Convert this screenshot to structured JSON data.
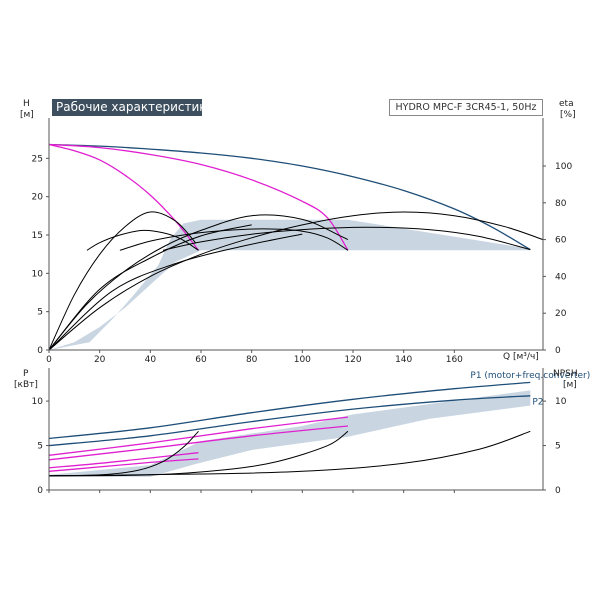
{
  "title": "Рабочие характеристики",
  "model": "HYDRO MPC-F 3CR45-1, 50Hz",
  "colors": {
    "area": "#c9d6e2",
    "max_curve": "#1e4e78",
    "speed_curve": "#000000",
    "eta_curve": "#000000",
    "one_pump": "#e020d0",
    "power_curve": "#1e4e78",
    "npsh_curve": "#000000",
    "label": "#1e4e78"
  },
  "top_axes": {
    "y_left": {
      "symbol": "H",
      "unit": "[м]",
      "ticks": [
        "0",
        "5",
        "10",
        "15",
        "20",
        "25"
      ]
    },
    "y_right": {
      "symbol": "eta",
      "unit": "[%]",
      "ticks": [
        "0",
        "20",
        "40",
        "60",
        "80",
        "100"
      ]
    },
    "x": {
      "symbol": "Q",
      "unit": "[м³/ч]",
      "ticks": [
        "0",
        "20",
        "40",
        "60",
        "80",
        "100",
        "120",
        "140",
        "160"
      ]
    }
  },
  "bottom_axes": {
    "y_left": {
      "symbol": "P",
      "unit": "[кВт]",
      "ticks": [
        "0",
        "5",
        "10"
      ]
    },
    "y_right": {
      "symbol": "NPSH",
      "unit": "[м]",
      "ticks": [
        "0",
        "5",
        "10"
      ]
    }
  },
  "chart_data": [
    {
      "type": "line",
      "xlim": [
        0,
        195
      ],
      "ylim": [
        0,
        30
      ],
      "y2lim": [
        0,
        125
      ],
      "xlabel": "Q [м³/ч]",
      "ylabel": "H [м]",
      "y2label": "eta [%]",
      "grid": false,
      "area_bounds": [
        [
          0,
          0
        ],
        [
          16,
          1
        ],
        [
          25,
          4
        ],
        [
          33,
          7
        ],
        [
          43,
          11
        ],
        [
          48,
          14.5
        ],
        [
          53,
          16.5
        ],
        [
          60,
          17
        ],
        [
          118,
          17
        ],
        [
          190,
          13.2
        ],
        [
          190,
          13
        ],
        [
          60,
          13
        ],
        [
          50,
          11.5
        ],
        [
          40,
          8.5
        ],
        [
          30,
          5.5
        ],
        [
          20,
          3
        ],
        [
          10,
          1
        ],
        [
          0,
          0
        ]
      ],
      "series": [
        {
          "role": "max-speed-3-pumps",
          "color": "max_curve",
          "points": [
            [
              0,
              26.8
            ],
            [
              20,
              26.6
            ],
            [
              40,
              26.2
            ],
            [
              60,
              25.7
            ],
            [
              80,
              25
            ],
            [
              100,
              24
            ],
            [
              120,
              22.6
            ],
            [
              140,
              20.8
            ],
            [
              160,
              18.4
            ],
            [
              175,
              16
            ],
            [
              190,
              13.1
            ]
          ]
        },
        {
          "role": "max-speed-2-pumps",
          "color": "one_pump",
          "points": [
            [
              0,
              26.8
            ],
            [
              20,
              26.4
            ],
            [
              40,
              25.5
            ],
            [
              60,
              24.2
            ],
            [
              80,
              22.2
            ],
            [
              100,
              19.4
            ],
            [
              110,
              17.2
            ],
            [
              118,
              13
            ]
          ]
        },
        {
          "role": "max-speed-1-pump",
          "color": "one_pump",
          "points": [
            [
              0,
              26.8
            ],
            [
              10,
              26
            ],
            [
              20,
              24.8
            ],
            [
              30,
              22.8
            ],
            [
              40,
              20.2
            ],
            [
              50,
              16.8
            ],
            [
              59,
              13
            ]
          ]
        },
        {
          "role": "reduced-speed-3-pumps",
          "color": "speed_curve",
          "points": [
            [
              45,
              13
            ],
            [
              60,
              14.1
            ],
            [
              80,
              15.1
            ],
            [
              100,
              15.7
            ],
            [
              125,
              16
            ],
            [
              150,
              15.7
            ],
            [
              170,
              14.8
            ],
            [
              190,
              13.1
            ]
          ]
        },
        {
          "role": "reduced-speed-2-pumps",
          "color": "speed_curve",
          "points": [
            [
              28,
              13
            ],
            [
              40,
              14.2
            ],
            [
              55,
              15.1
            ],
            [
              70,
              15.6
            ],
            [
              85,
              15.8
            ],
            [
              100,
              15.5
            ],
            [
              110,
              14.6
            ],
            [
              118,
              13
            ]
          ]
        },
        {
          "role": "reduced-speed-1-pump",
          "color": "speed_curve",
          "points": [
            [
              15,
              13
            ],
            [
              20,
              14
            ],
            [
              28,
              15
            ],
            [
              37,
              15.6
            ],
            [
              45,
              15.3
            ],
            [
              52,
              14.5
            ],
            [
              59,
              13
            ]
          ]
        },
        {
          "role": "eta-3-pumps",
          "axis": "y2",
          "color": "eta_curve",
          "points": [
            [
              0,
              0
            ],
            [
              20,
              23
            ],
            [
              40,
              40
            ],
            [
              60,
              52
            ],
            [
              80,
              61
            ],
            [
              100,
              68
            ],
            [
              120,
              73
            ],
            [
              140,
              75
            ],
            [
              160,
              73
            ],
            [
              180,
              67
            ],
            [
              195,
              60
            ]
          ]
        },
        {
          "role": "eta-2-pumps",
          "axis": "y2",
          "color": "eta_curve",
          "points": [
            [
              0,
              0
            ],
            [
              15,
              25
            ],
            [
              30,
              43
            ],
            [
              45,
              56
            ],
            [
              60,
              65
            ],
            [
              80,
              73
            ],
            [
              100,
              71
            ],
            [
              115,
              62
            ],
            [
              118,
              60
            ]
          ]
        },
        {
          "role": "eta-1-pump",
          "axis": "y2",
          "color": "eta_curve",
          "points": [
            [
              0,
              0
            ],
            [
              10,
              30
            ],
            [
              20,
              52
            ],
            [
              30,
              67
            ],
            [
              40,
              75
            ],
            [
              50,
              70
            ],
            [
              58,
              58
            ]
          ]
        },
        {
          "role": "eta-aux-a",
          "axis": "y2",
          "color": "eta_curve",
          "points": [
            [
              0,
              0
            ],
            [
              25,
              32
            ],
            [
              50,
              47
            ],
            [
              75,
              56
            ],
            [
              100,
              63
            ]
          ]
        },
        {
          "role": "eta-aux-b",
          "axis": "y2",
          "color": "eta_curve",
          "points": [
            [
              0,
              0
            ],
            [
              20,
              33
            ],
            [
              40,
              50
            ],
            [
              60,
              62
            ],
            [
              80,
              68
            ]
          ]
        }
      ]
    },
    {
      "type": "line",
      "xlim": [
        0,
        195
      ],
      "ylim": [
        0,
        13.5
      ],
      "y2lim": [
        0,
        13.5
      ],
      "ylabel": "P [кВт]",
      "y2label": "NPSH [м]",
      "grid": false,
      "area_bounds": [
        [
          0,
          1.7
        ],
        [
          40,
          2.8
        ],
        [
          60,
          5.5
        ],
        [
          100,
          7.2
        ],
        [
          120,
          8.5
        ],
        [
          190,
          11.2
        ],
        [
          190,
          9.5
        ],
        [
          150,
          8
        ],
        [
          118,
          6
        ],
        [
          80,
          4.5
        ],
        [
          59,
          3
        ],
        [
          40,
          1.5
        ],
        [
          0,
          1.5
        ]
      ],
      "labels": [
        {
          "text": "P1 (motor+freq.converter)",
          "x": 190,
          "y": 12.6
        },
        {
          "text": "P2",
          "x": 193,
          "y": 9.6
        }
      ],
      "series": [
        {
          "name": "P1 (motor+freq.converter)",
          "color": "power_curve",
          "points": [
            [
              0,
              5.8
            ],
            [
              40,
              7
            ],
            [
              80,
              8.7
            ],
            [
              120,
              10.2
            ],
            [
              160,
              11.4
            ],
            [
              190,
              12.1
            ]
          ]
        },
        {
          "name": "P2",
          "color": "power_curve",
          "points": [
            [
              0,
              5
            ],
            [
              40,
              6.1
            ],
            [
              80,
              7.7
            ],
            [
              120,
              9.1
            ],
            [
              160,
              10.1
            ],
            [
              190,
              10.6
            ]
          ]
        },
        {
          "role": "p1-2-pumps",
          "color": "one_pump",
          "points": [
            [
              0,
              3.9
            ],
            [
              40,
              5.3
            ],
            [
              80,
              6.9
            ],
            [
              118,
              8.2
            ]
          ]
        },
        {
          "role": "p2-2-pumps",
          "color": "one_pump",
          "points": [
            [
              0,
              3.4
            ],
            [
              40,
              4.7
            ],
            [
              80,
              6.1
            ],
            [
              118,
              7.2
            ]
          ]
        },
        {
          "role": "p1-1-pump",
          "color": "one_pump",
          "points": [
            [
              0,
              2.5
            ],
            [
              20,
              3
            ],
            [
              40,
              3.6
            ],
            [
              59,
              4.2
            ]
          ]
        },
        {
          "role": "p2-1-pump",
          "color": "one_pump",
          "points": [
            [
              0,
              2.1
            ],
            [
              20,
              2.6
            ],
            [
              40,
              3.1
            ],
            [
              59,
              3.5
            ]
          ]
        },
        {
          "role": "npsh-3-pumps",
          "color": "npsh_curve",
          "points": [
            [
              0,
              1.6
            ],
            [
              60,
              1.8
            ],
            [
              100,
              2.1
            ],
            [
              140,
              3
            ],
            [
              170,
              4.6
            ],
            [
              190,
              6.6
            ]
          ]
        },
        {
          "role": "npsh-2-pumps",
          "color": "npsh_curve",
          "points": [
            [
              0,
              1.6
            ],
            [
              40,
              1.7
            ],
            [
              70,
              2.3
            ],
            [
              90,
              3.2
            ],
            [
              110,
              5
            ],
            [
              118,
              6.6
            ]
          ]
        },
        {
          "role": "npsh-1-pump",
          "color": "npsh_curve",
          "points": [
            [
              0,
              1.6
            ],
            [
              20,
              1.7
            ],
            [
              35,
              2.2
            ],
            [
              45,
              3.2
            ],
            [
              53,
              4.8
            ],
            [
              59,
              6.6
            ]
          ]
        }
      ]
    }
  ]
}
